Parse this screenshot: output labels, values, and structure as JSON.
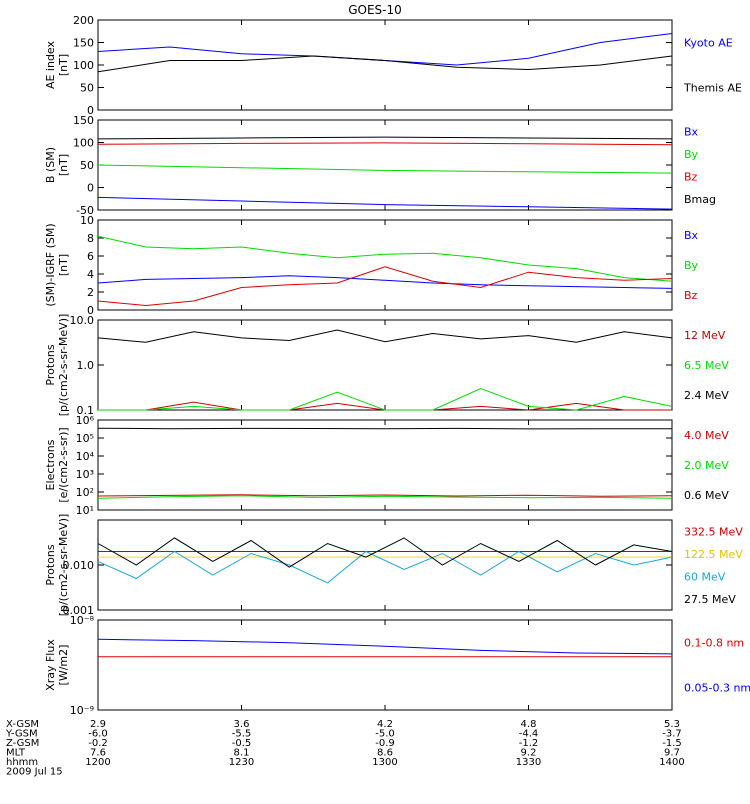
{
  "title": "GOES-10",
  "colors": {
    "black": "#000000",
    "blue": "#0000ff",
    "green": "#00dd00",
    "red": "#dd0000",
    "dark_red": "#cc0000",
    "yellow": "#ffdd00",
    "cyan": "#18a8d8"
  },
  "chart_data": [
    {
      "type": "line",
      "panel": "ae",
      "ylabel": [
        "AE index",
        "[nT]"
      ],
      "ylim": [
        0,
        200
      ],
      "yscale": "linear",
      "yticks": [
        0,
        50,
        100,
        150,
        200
      ],
      "x": [
        0,
        15,
        30,
        45,
        60,
        75,
        90,
        105,
        120
      ],
      "series": [
        {
          "name": "Kyoto AE",
          "color": "#0000ff",
          "values": [
            130,
            140,
            125,
            120,
            110,
            100,
            115,
            150,
            170
          ]
        },
        {
          "name": "Themis AE",
          "color": "#000000",
          "values": [
            85,
            110,
            110,
            120,
            110,
            95,
            90,
            100,
            120
          ]
        }
      ]
    },
    {
      "type": "line",
      "panel": "b_sm",
      "ylabel": [
        "B (SM)",
        "[nT]"
      ],
      "ylim": [
        -50,
        150
      ],
      "yscale": "linear",
      "yticks": [
        -50,
        0,
        50,
        100,
        150
      ],
      "x": [
        0,
        30,
        60,
        90,
        120
      ],
      "series": [
        {
          "name": "Bx",
          "color": "#0000ff",
          "values": [
            -22,
            -30,
            -38,
            -43,
            -48
          ]
        },
        {
          "name": "By",
          "color": "#00dd00",
          "values": [
            50,
            44,
            38,
            35,
            32
          ]
        },
        {
          "name": "Bz",
          "color": "#dd0000",
          "values": [
            96,
            98,
            99,
            97,
            95
          ]
        },
        {
          "name": "Bmag",
          "color": "#000000",
          "values": [
            108,
            110,
            112,
            110,
            108
          ]
        }
      ]
    },
    {
      "type": "line",
      "panel": "b_igrf",
      "ylabel": [
        "(SM)-IGRF (SM)",
        "[nT]"
      ],
      "ylim": [
        0,
        10
      ],
      "yscale": "linear",
      "yticks": [
        0,
        2,
        4,
        6,
        8,
        10
      ],
      "x": [
        0,
        10,
        20,
        30,
        40,
        50,
        60,
        70,
        80,
        90,
        100,
        110,
        120
      ],
      "series": [
        {
          "name": "Bx",
          "color": "#0000ff",
          "values": [
            3.0,
            3.4,
            3.5,
            3.6,
            3.8,
            3.6,
            3.3,
            3.0,
            2.8,
            2.7,
            2.6,
            2.5,
            2.4
          ]
        },
        {
          "name": "By",
          "color": "#00dd00",
          "values": [
            8.2,
            7.0,
            6.8,
            7.0,
            6.3,
            5.8,
            6.2,
            6.3,
            5.8,
            5.0,
            4.6,
            3.6,
            3.2
          ]
        },
        {
          "name": "Bz",
          "color": "#dd0000",
          "values": [
            1.0,
            0.5,
            1.0,
            2.5,
            2.8,
            3.0,
            4.8,
            3.2,
            2.5,
            4.2,
            3.6,
            3.3,
            3.5
          ]
        }
      ]
    },
    {
      "type": "line",
      "panel": "protons_low",
      "ylabel": [
        "Protons",
        "[p/(cm2-s-sr-MeV)]"
      ],
      "ylim": [
        0.1,
        10
      ],
      "yscale": "log",
      "yticks": [
        0.1,
        1.0,
        10.0
      ],
      "ytick_labels": [
        "0.1",
        "1.0",
        "10.0"
      ],
      "x": [
        0,
        10,
        20,
        30,
        40,
        50,
        60,
        70,
        80,
        90,
        100,
        110,
        120
      ],
      "series": [
        {
          "name": "12 MeV",
          "color": "#cc0000",
          "values": [
            0.08,
            0.08,
            0.15,
            0.08,
            0.09,
            0.14,
            0.09,
            0.08,
            0.12,
            0.09,
            0.14,
            0.08,
            0.09
          ]
        },
        {
          "name": "6.5 MeV",
          "color": "#00dd00",
          "values": [
            0.1,
            0.09,
            0.12,
            0.08,
            0.1,
            0.25,
            0.1,
            0.09,
            0.3,
            0.12,
            0.1,
            0.2,
            0.12
          ]
        },
        {
          "name": "2.4 MeV",
          "color": "#000000",
          "values": [
            4.0,
            3.2,
            5.5,
            4.0,
            3.5,
            6.0,
            3.3,
            5.0,
            3.8,
            4.5,
            3.2,
            5.5,
            4.0
          ]
        }
      ]
    },
    {
      "type": "line",
      "panel": "electrons",
      "ylabel": [
        "Electrons",
        "[e/(cm2-s-sr)]"
      ],
      "ylim": [
        10,
        1000000
      ],
      "yscale": "log",
      "yticks": [
        10,
        100,
        1000,
        10000,
        100000,
        1000000
      ],
      "ytick_labels": [
        "10¹",
        "10²",
        "10³",
        "10⁴",
        "10⁵",
        "10⁶"
      ],
      "x": [
        0,
        15,
        30,
        45,
        60,
        75,
        90,
        105,
        120
      ],
      "series": [
        {
          "name": "4.0 MeV",
          "color": "#cc0000",
          "values": [
            60,
            65,
            70,
            62,
            68,
            60,
            66,
            58,
            62
          ]
        },
        {
          "name": "2.0 MeV",
          "color": "#00dd00",
          "values": [
            45,
            55,
            62,
            50,
            58,
            52,
            48,
            50,
            45
          ]
        },
        {
          "name": "0.6 MeV",
          "color": "#000000",
          "values": [
            350000,
            330000,
            340000,
            335000,
            330000,
            340000,
            320000,
            330000,
            325000
          ]
        }
      ]
    },
    {
      "type": "line",
      "panel": "protons_high",
      "ylabel": [
        "Protons",
        "[p/(cm2-s-sr-MeV)]"
      ],
      "ylim": [
        0.001,
        0.1
      ],
      "yscale": "log",
      "yticks": [
        0.001,
        0.01,
        0.1
      ],
      "ytick_labels": [
        "0.001",
        "0.010",
        ""
      ],
      "x": [
        0,
        8,
        16,
        24,
        32,
        40,
        48,
        56,
        64,
        72,
        80,
        88,
        96,
        104,
        112,
        120
      ],
      "series": [
        {
          "name": "332.5 MeV",
          "color": "#cc0000",
          "values": [
            0.02,
            0.02,
            0.02,
            0.02,
            0.02,
            0.02,
            0.02,
            0.02,
            0.02,
            0.02,
            0.02,
            0.02,
            0.02,
            0.02,
            0.02,
            0.02
          ]
        },
        {
          "name": "122.5 MeV",
          "color": "#ffdd00",
          "values": [
            0.015,
            0.015,
            0.015,
            0.015,
            0.015,
            0.015,
            0.015,
            0.015,
            0.015,
            0.015,
            0.015,
            0.015,
            0.015,
            0.015,
            0.015,
            0.015
          ]
        },
        {
          "name": "60 MeV",
          "color": "#18a8d8",
          "values": [
            0.012,
            0.005,
            0.02,
            0.006,
            0.018,
            0.01,
            0.004,
            0.02,
            0.008,
            0.018,
            0.006,
            0.02,
            0.007,
            0.018,
            0.01,
            0.015
          ]
        },
        {
          "name": "27.5 MeV",
          "color": "#000000",
          "values": [
            0.03,
            0.01,
            0.04,
            0.012,
            0.035,
            0.009,
            0.03,
            0.015,
            0.04,
            0.01,
            0.03,
            0.012,
            0.035,
            0.01,
            0.028,
            0.02
          ]
        }
      ]
    },
    {
      "type": "line",
      "panel": "xray",
      "ylabel": [
        "Xray Flux",
        "[W/m2]"
      ],
      "ylim": [
        1e-09,
        1e-08
      ],
      "yscale": "log",
      "yticks": [
        1e-09,
        1e-08
      ],
      "ytick_labels": [
        "10⁻⁹",
        "10⁻⁸"
      ],
      "x": [
        0,
        20,
        40,
        60,
        80,
        100,
        120
      ],
      "series": [
        {
          "name": "0.1-0.8 nm",
          "color": "#dd0000",
          "values": [
            3.9e-09,
            3.9e-09,
            3.9e-09,
            3.9e-09,
            3.9e-09,
            3.9e-09,
            3.9e-09
          ]
        },
        {
          "name": "0.05-0.3 nm",
          "color": "#0000ff",
          "values": [
            6.1e-09,
            5.9e-09,
            5.6e-09,
            5.1e-09,
            4.6e-09,
            4.3e-09,
            4.2e-09
          ]
        }
      ]
    }
  ],
  "x_axis": {
    "range_minutes": [
      0,
      120
    ],
    "tick_minutes": [
      0,
      30,
      60,
      90,
      120
    ],
    "row_labels": [
      "X-GSM",
      "Y-GSM",
      "Z-GSM",
      "MLT",
      "hhmm",
      "2009 Jul 15"
    ],
    "columns": [
      [
        "2.9",
        "-6.0",
        "-0.2",
        "7.6",
        "1200"
      ],
      [
        "3.6",
        "-5.5",
        "-0.5",
        "8.1",
        "1230"
      ],
      [
        "4.2",
        "-5.0",
        "-0.9",
        "8.6",
        "1300"
      ],
      [
        "4.8",
        "-4.4",
        "-1.2",
        "9.2",
        "1330"
      ],
      [
        "5.3",
        "-3.7",
        "-1.5",
        "9.7",
        "1400"
      ]
    ]
  }
}
